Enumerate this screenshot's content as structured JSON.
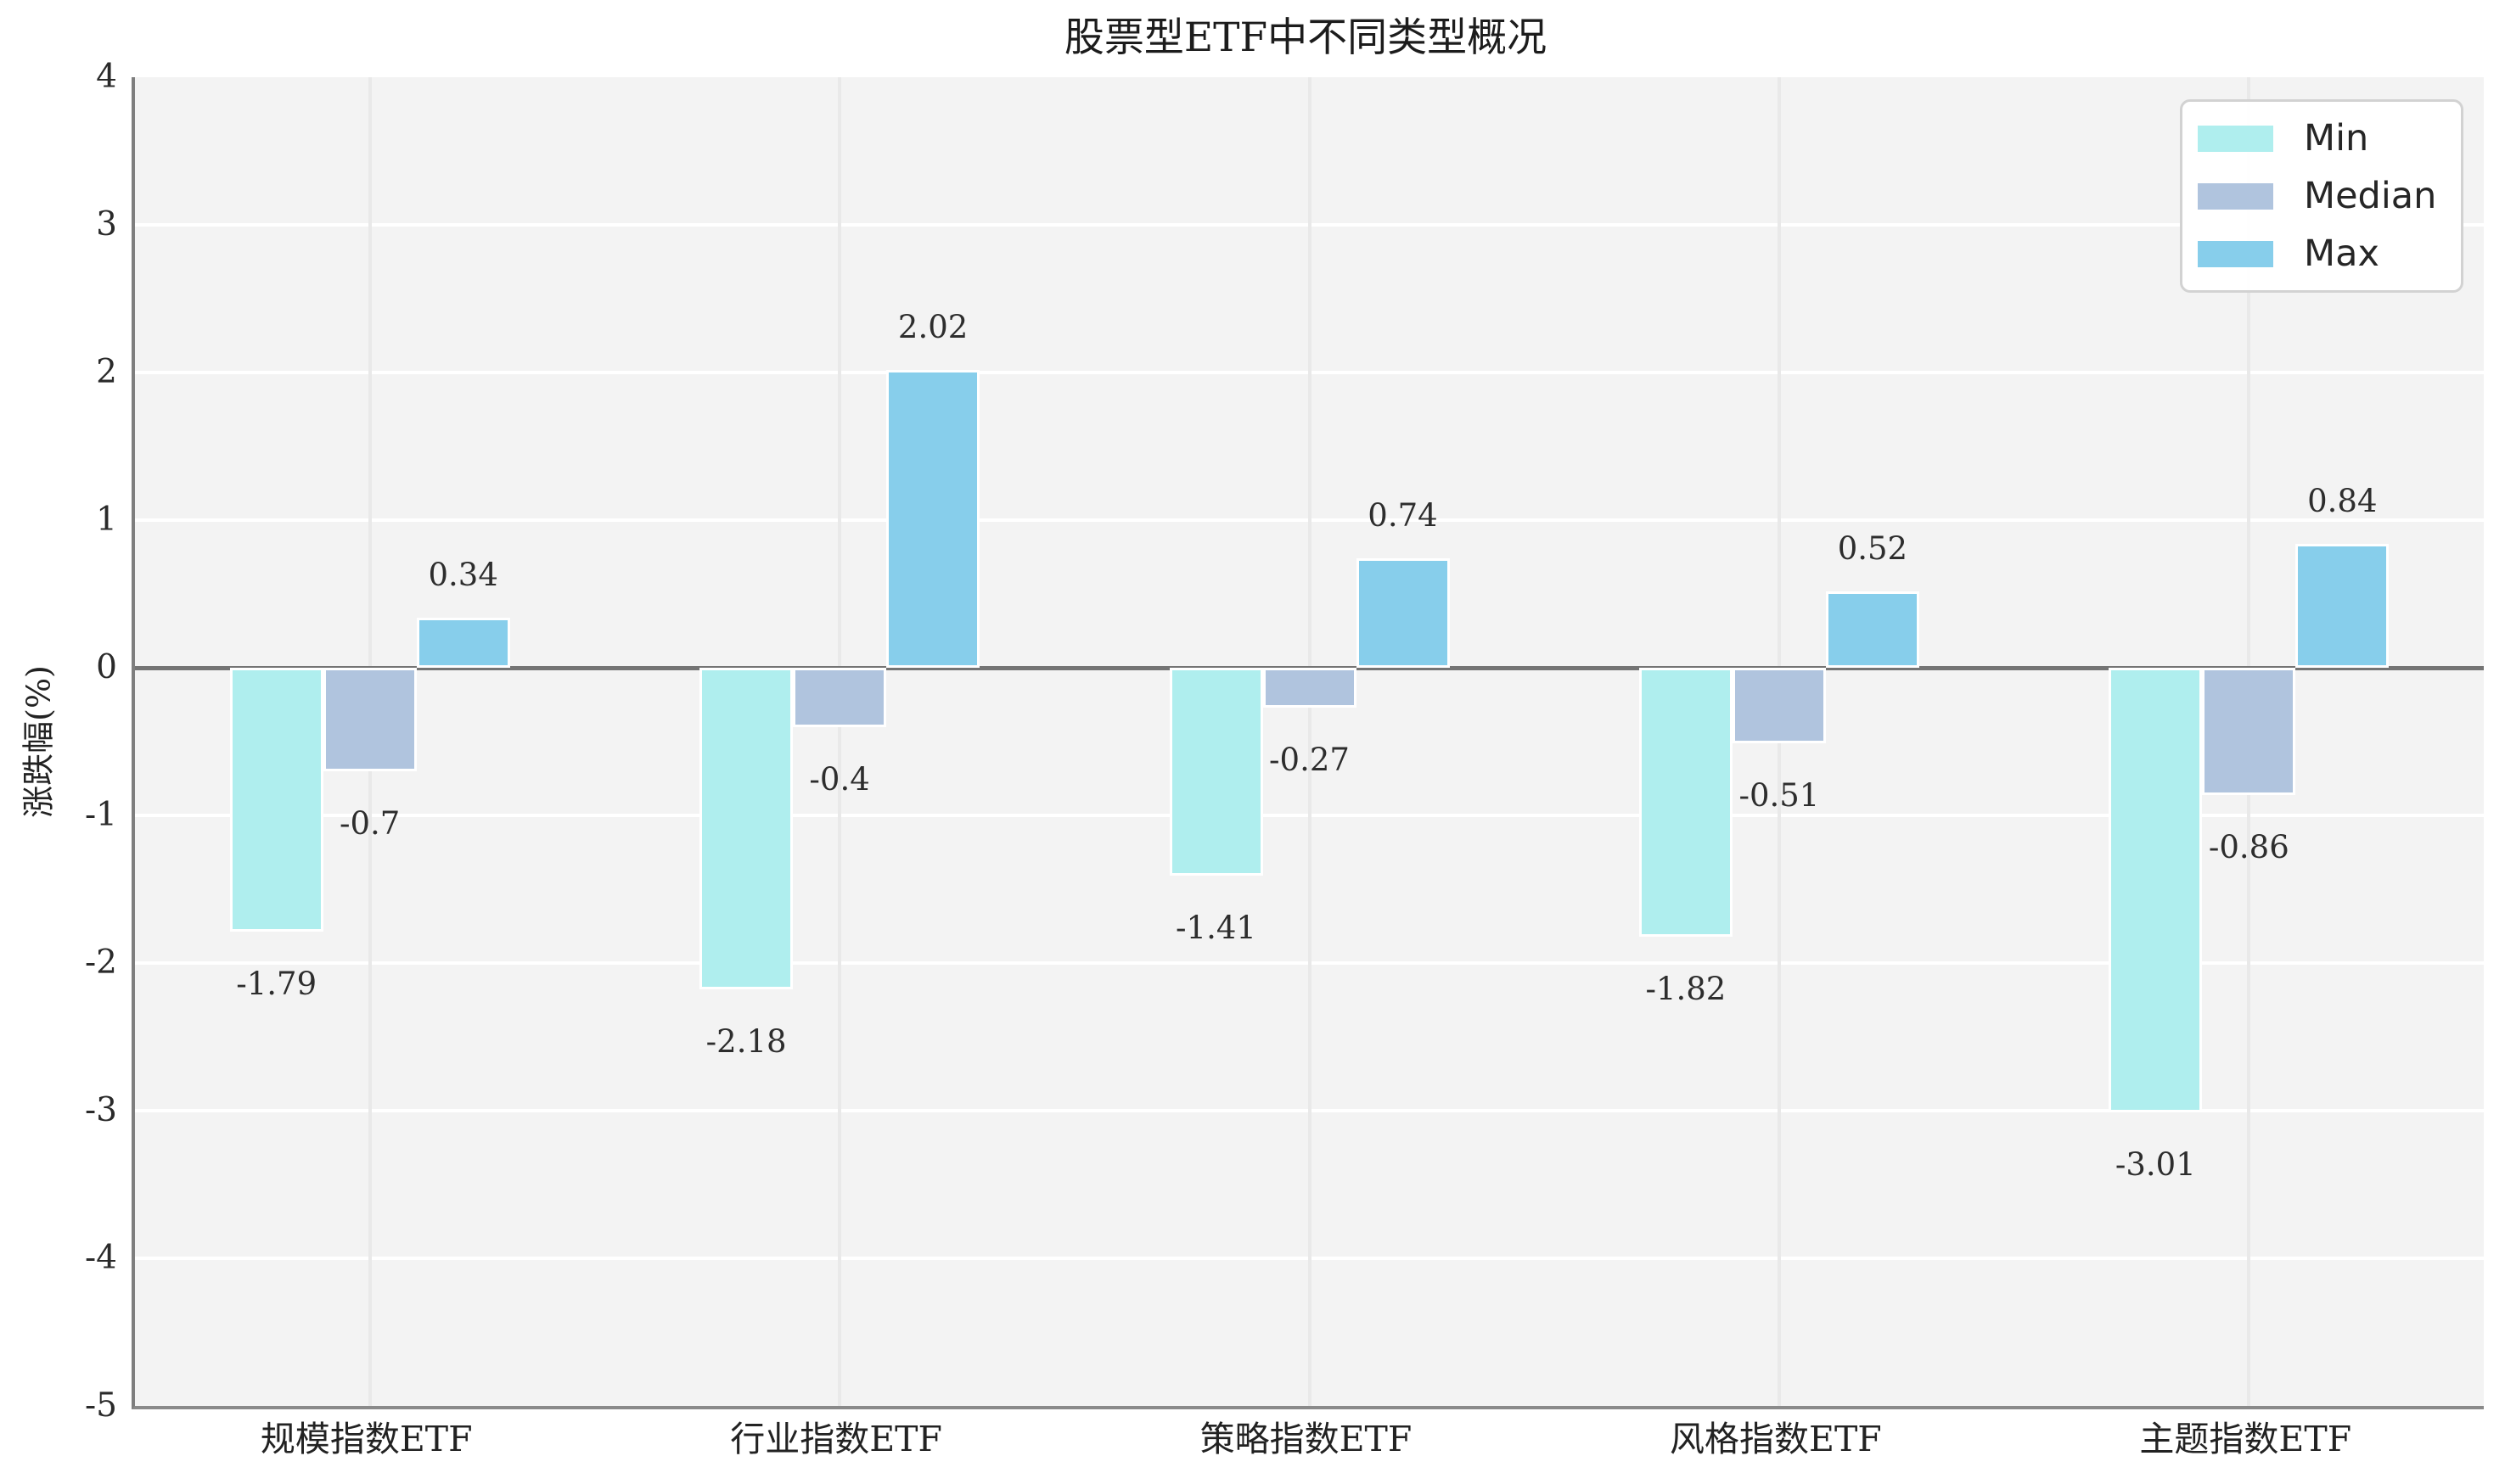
{
  "title": "股票型ETF中不同类型概况",
  "chart_data": {
    "type": "bar",
    "title": "股票型ETF中不同类型概况",
    "xlabel": "",
    "ylabel": "涨跌幅(%)",
    "categories": [
      "规模指数ETF",
      "行业指数ETF",
      "策略指数ETF",
      "风格指数ETF",
      "主题指数ETF"
    ],
    "series": [
      {
        "name": "Min",
        "color": "#AFEEEE",
        "values": [
          -1.79,
          -2.18,
          -1.41,
          -1.82,
          -3.01
        ]
      },
      {
        "name": "Median",
        "color": "#B0C4DE",
        "values": [
          -0.7,
          -0.4,
          -0.27,
          -0.51,
          -0.86
        ]
      },
      {
        "name": "Max",
        "color": "#87CEEB",
        "values": [
          0.34,
          2.02,
          0.74,
          0.52,
          0.84
        ]
      }
    ],
    "value_labels": {
      "Min": [
        "-1.79",
        "-2.18",
        "-1.41",
        "-1.82",
        "-3.01"
      ],
      "Median": [
        "-0.7",
        "-0.4",
        "-0.27",
        "-0.51",
        "-0.86"
      ],
      "Max": [
        "0.34",
        "2.02",
        "0.74",
        "0.52",
        "0.84"
      ]
    },
    "ylim": [
      -5,
      4
    ],
    "yticks": [
      4,
      3,
      2,
      1,
      0,
      -1,
      -2,
      -3,
      -4,
      -5
    ],
    "grid": true,
    "legend_position": "upper right",
    "bar_edge_color": "#ffffff",
    "plot_background": "#f3f3f3",
    "zero_line_color": "#747474"
  },
  "legend": {
    "items": [
      {
        "label": "Min"
      },
      {
        "label": "Median"
      },
      {
        "label": "Max"
      }
    ]
  }
}
